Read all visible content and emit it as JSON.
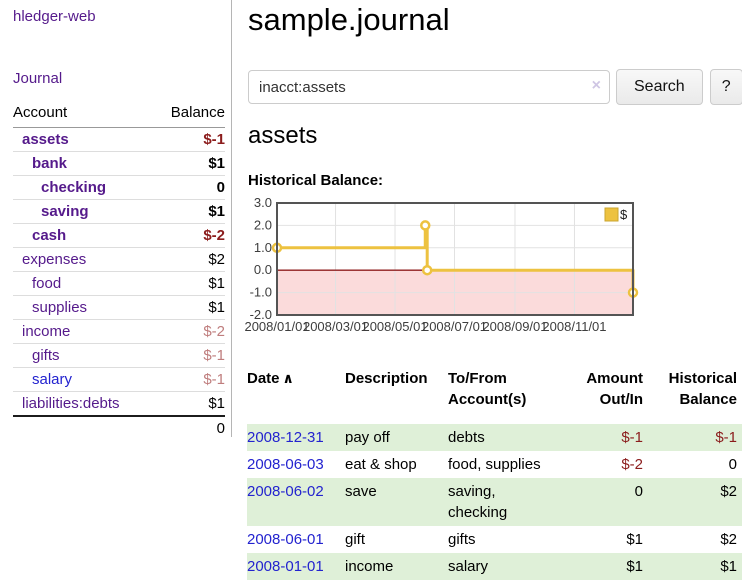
{
  "app": {
    "brand": "hledger-web"
  },
  "sidebar": {
    "journal_link": "Journal",
    "accounts": {
      "col_account": "Account",
      "col_balance": "Balance",
      "rows": [
        {
          "name": "assets",
          "balance": "$-1",
          "depth": 1,
          "bold": true,
          "tone": "neg",
          "link": "purple"
        },
        {
          "name": "bank",
          "balance": "$1",
          "depth": 2,
          "bold": true,
          "tone": "",
          "link": "purple"
        },
        {
          "name": "checking",
          "balance": "0",
          "depth": 3,
          "bold": true,
          "tone": "",
          "link": "purple"
        },
        {
          "name": "saving",
          "balance": "$1",
          "depth": 3,
          "bold": true,
          "tone": "",
          "link": "purple"
        },
        {
          "name": "cash",
          "balance": "$-2",
          "depth": 2,
          "bold": true,
          "tone": "neg",
          "link": "purple"
        },
        {
          "name": "expenses",
          "balance": "$2",
          "depth": 1,
          "bold": false,
          "tone": "",
          "link": "purple"
        },
        {
          "name": "food",
          "balance": "$1",
          "depth": 2,
          "bold": false,
          "tone": "",
          "link": "purple"
        },
        {
          "name": "supplies",
          "balance": "$1",
          "depth": 2,
          "bold": false,
          "tone": "",
          "link": "purple"
        },
        {
          "name": "income",
          "balance": "$-2",
          "depth": 1,
          "bold": false,
          "tone": "negm",
          "link": "purple"
        },
        {
          "name": "gifts",
          "balance": "$-1",
          "depth": 2,
          "bold": false,
          "tone": "negm",
          "link": "purple"
        },
        {
          "name": "salary",
          "balance": "$-1",
          "depth": 2,
          "bold": false,
          "tone": "negm",
          "link": "blue"
        },
        {
          "name": "liabilities:debts",
          "balance": "$1",
          "depth": 1,
          "bold": false,
          "tone": "",
          "link": "purple"
        }
      ],
      "total": "0"
    }
  },
  "main": {
    "title": "sample.journal",
    "search": {
      "value": "inacct:assets",
      "clear_icon": "×",
      "search_button": "Search",
      "help_button": "?"
    },
    "account_heading": "assets",
    "chart_title": "Historical Balance:"
  },
  "chart_data": {
    "type": "line",
    "step": true,
    "title": "Historical Balance:",
    "series": [
      {
        "name": "$",
        "color": "#EDC240",
        "points": [
          {
            "date": "2008-01-01",
            "value": 1.0
          },
          {
            "date": "2008-06-01",
            "value": 2.0
          },
          {
            "date": "2008-06-03",
            "value": 0.0
          },
          {
            "date": "2008-12-31",
            "value": -1.0
          }
        ]
      }
    ],
    "x_range": [
      "2008-01-01",
      "2008-12-31"
    ],
    "ylim": [
      -2.0,
      3.0
    ],
    "x_ticks": [
      "2008/01/01",
      "2008/03/01",
      "2008/05/01",
      "2008/07/01",
      "2008/09/01",
      "2008/11/01"
    ],
    "y_ticks": [
      3.0,
      2.0,
      1.0,
      0.0,
      -1.0,
      -2.0
    ],
    "legend": {
      "label": "$",
      "position": "top-right"
    },
    "grid": true,
    "negative_region_color": "#fbdbdb",
    "zero_line_color": "#8f1e1e",
    "border_color": "#545454"
  },
  "register": {
    "header": {
      "date": "Date",
      "sort_indicator": "∧",
      "description": "Description",
      "accounts": "To/From Account(s)",
      "amount": "Amount Out/In",
      "balance": "Historical Balance"
    },
    "rows": [
      {
        "date": "2008-12-31",
        "description": "pay off",
        "accounts": "debts",
        "amount": "$-1",
        "amount_negative": true,
        "balance": "$-1",
        "balance_negative": true,
        "shaded": true
      },
      {
        "date": "2008-06-03",
        "description": "eat & shop",
        "accounts": "food, supplies",
        "amount": "$-2",
        "amount_negative": true,
        "balance": "0",
        "balance_negative": false,
        "shaded": false
      },
      {
        "date": "2008-06-02",
        "description": "save",
        "accounts": "saving, checking",
        "amount": "0",
        "amount_negative": false,
        "balance": "$2",
        "balance_negative": false,
        "shaded": true
      },
      {
        "date": "2008-06-01",
        "description": "gift",
        "accounts": "gifts",
        "amount": "$1",
        "amount_negative": false,
        "balance": "$2",
        "balance_negative": false,
        "shaded": false
      },
      {
        "date": "2008-01-01",
        "description": "income",
        "accounts": "salary",
        "amount": "$1",
        "amount_negative": false,
        "balance": "$1",
        "balance_negative": false,
        "shaded": true
      }
    ]
  },
  "colors": {
    "link_purple": "#551a8b",
    "link_blue": "#2323cf",
    "negative": "#8b1c1c",
    "negative_muted": "#bf7d7d",
    "row_stripe_green": "#dff0d8",
    "chart_line_gold": "#EDC240"
  }
}
